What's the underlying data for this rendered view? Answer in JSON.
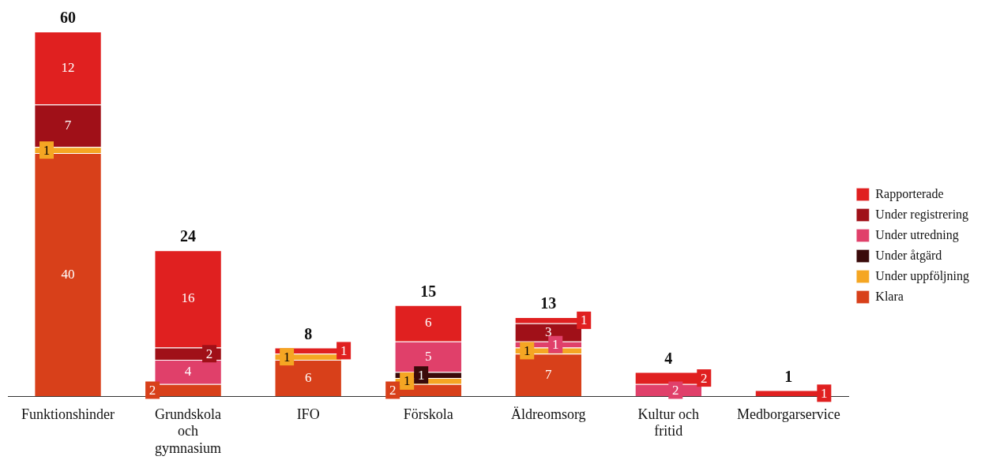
{
  "chart_data": {
    "type": "bar",
    "stacked": true,
    "categories": [
      "Funktionshinder",
      "Grundskola och gymnasium",
      "IFO",
      "Förskola",
      "Äldreomsorg",
      "Kultur och fritid",
      "Medborgarservice"
    ],
    "series": [
      {
        "name": "Klara",
        "color": "#d8401a",
        "values": [
          40,
          2,
          6,
          2,
          7,
          null,
          null
        ]
      },
      {
        "name": "Under uppföljning",
        "color": "#f5a623",
        "values": [
          1,
          null,
          1,
          1,
          1,
          null,
          null
        ]
      },
      {
        "name": "Under åtgärd",
        "color": "#3a0a0a",
        "values": [
          null,
          null,
          null,
          1,
          null,
          null,
          null
        ]
      },
      {
        "name": "Under utredning",
        "color": "#e0406a",
        "values": [
          null,
          4,
          null,
          5,
          1,
          2,
          null
        ]
      },
      {
        "name": "Under registrering",
        "color": "#a01018",
        "values": [
          7,
          2,
          null,
          null,
          3,
          null,
          null
        ]
      },
      {
        "name": "Rapporterade",
        "color": "#e02020",
        "values": [
          12,
          16,
          1,
          6,
          1,
          2,
          1
        ]
      }
    ],
    "totals": [
      "60",
      "24",
      "8",
      "15",
      "13",
      "4",
      "1"
    ],
    "data_labels": true,
    "ylim": [
      0,
      60
    ],
    "tick_labels": "x",
    "grid": false,
    "legend": "right"
  }
}
